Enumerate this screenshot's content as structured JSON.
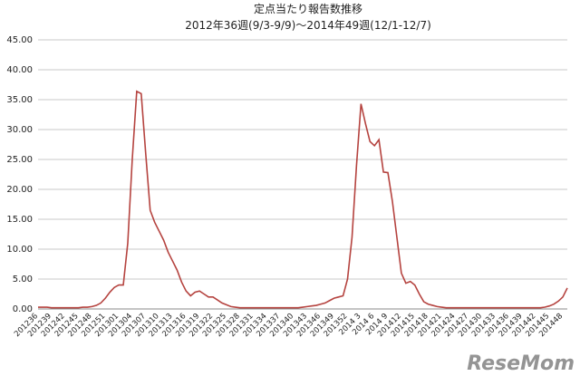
{
  "chart_data": {
    "type": "line",
    "title": "定点当たり報告数推移",
    "subtitle": "2012年36週(9/3-9/9)～2014年49週(12/1-12/7)",
    "watermark": "ReseMom",
    "categories": [
      "201236",
      null,
      null,
      "201239",
      null,
      null,
      "201242",
      null,
      null,
      "201245",
      null,
      null,
      "201248",
      null,
      null,
      "201251",
      null,
      null,
      "201301",
      null,
      null,
      "201304",
      null,
      null,
      "201307",
      null,
      null,
      "201310",
      null,
      null,
      "201313",
      null,
      null,
      "201316",
      null,
      null,
      "201319",
      null,
      null,
      "201322",
      null,
      null,
      "201325",
      null,
      null,
      "201328",
      null,
      null,
      "201331",
      null,
      null,
      "201334",
      null,
      null,
      "201337",
      null,
      null,
      "201340",
      null,
      null,
      "201343",
      null,
      null,
      "201346",
      null,
      null,
      "201349",
      null,
      null,
      "201352",
      null,
      null,
      "2014 3",
      null,
      null,
      "2014 6",
      null,
      null,
      "2014 9",
      null,
      null,
      "201412",
      null,
      null,
      "201415",
      null,
      null,
      "201418",
      null,
      null,
      "201421",
      null,
      null,
      "201424",
      null,
      null,
      "201427",
      null,
      null,
      "201430",
      null,
      null,
      "201433",
      null,
      null,
      "201436",
      null,
      null,
      "201439",
      null,
      null,
      "201442",
      null,
      null,
      "201445",
      null,
      null,
      "201448",
      null
    ],
    "series": [
      {
        "color": "#b5433f",
        "values": [
          0.3,
          0.3,
          0.3,
          0.2,
          0.2,
          0.2,
          0.2,
          0.2,
          0.2,
          0.2,
          0.3,
          0.3,
          0.4,
          0.6,
          1.0,
          1.8,
          2.8,
          3.6,
          4.0,
          4.0,
          11.0,
          25.0,
          36.4,
          36.0,
          26.0,
          16.5,
          14.5,
          13.0,
          11.5,
          9.5,
          8.0,
          6.5,
          4.5,
          3.0,
          2.2,
          2.8,
          3.0,
          2.5,
          2.0,
          2.0,
          1.5,
          1.0,
          0.7,
          0.4,
          0.3,
          0.2,
          0.2,
          0.2,
          0.2,
          0.2,
          0.2,
          0.2,
          0.2,
          0.2,
          0.2,
          0.2,
          0.2,
          0.2,
          0.2,
          0.3,
          0.4,
          0.5,
          0.6,
          0.8,
          1.0,
          1.4,
          1.8,
          2.0,
          2.2,
          5.0,
          12.0,
          24.0,
          34.3,
          31.0,
          28.0,
          27.3,
          28.3,
          22.9,
          22.8,
          18.0,
          12.0,
          6.0,
          4.3,
          4.6,
          4.0,
          2.5,
          1.2,
          0.8,
          0.6,
          0.4,
          0.3,
          0.2,
          0.2,
          0.2,
          0.2,
          0.2,
          0.2,
          0.2,
          0.2,
          0.2,
          0.2,
          0.2,
          0.2,
          0.2,
          0.2,
          0.2,
          0.2,
          0.2,
          0.2,
          0.2,
          0.2,
          0.2,
          0.2,
          0.3,
          0.5,
          0.8,
          1.3,
          2.0,
          3.5
        ]
      }
    ],
    "ylim": [
      0,
      45
    ],
    "yticks": [
      {
        "value": 0,
        "label": "0.00"
      },
      {
        "value": 5,
        "label": "5.00"
      },
      {
        "value": 10,
        "label": "10.00"
      },
      {
        "value": 15,
        "label": "15.00"
      },
      {
        "value": 20,
        "label": "20.00"
      },
      {
        "value": 25,
        "label": "25.00"
      },
      {
        "value": 30,
        "label": "30.00"
      },
      {
        "value": 35,
        "label": "35.00"
      },
      {
        "value": 40,
        "label": "40.00"
      },
      {
        "value": 45,
        "label": "45.00"
      }
    ],
    "grid": true
  }
}
